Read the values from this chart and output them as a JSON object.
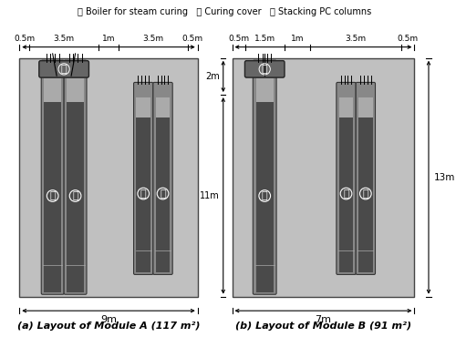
{
  "bg_color": "#ffffff",
  "light_gray": "#c0c0c0",
  "med_gray": "#909090",
  "dark_gray": "#555555",
  "boiler_fill": "#666666",
  "col_outer": "#888888",
  "col_inner": "#4a4a4a",
  "col_top_fill": "#aaaaaa",
  "legend_a": "ⓐ Boiler for steam curing",
  "legend_b": "ⓑ Curing cover",
  "legend_c": "ⓒ Stacking PC columns",
  "fig_label_A": "(a) Layout of Module A (117 m²)",
  "fig_label_B": "(b) Layout of Module B (91 m²)",
  "dim_9m": "9m",
  "dim_7m": "7m",
  "dim_13m": "13m",
  "dim_11m": "11m",
  "dim_2m": "2m",
  "dimA_top": [
    "0.5m",
    "3.5m",
    "1m",
    "3.5m",
    "0.5m"
  ],
  "dimB_top": [
    "0.5m",
    "1.5m",
    "1m",
    "3.5m",
    "0.5m"
  ],
  "segsA": [
    0.5,
    3.5,
    1.0,
    3.5,
    0.5
  ],
  "segsB": [
    0.5,
    1.5,
    1.0,
    3.5,
    0.5
  ]
}
